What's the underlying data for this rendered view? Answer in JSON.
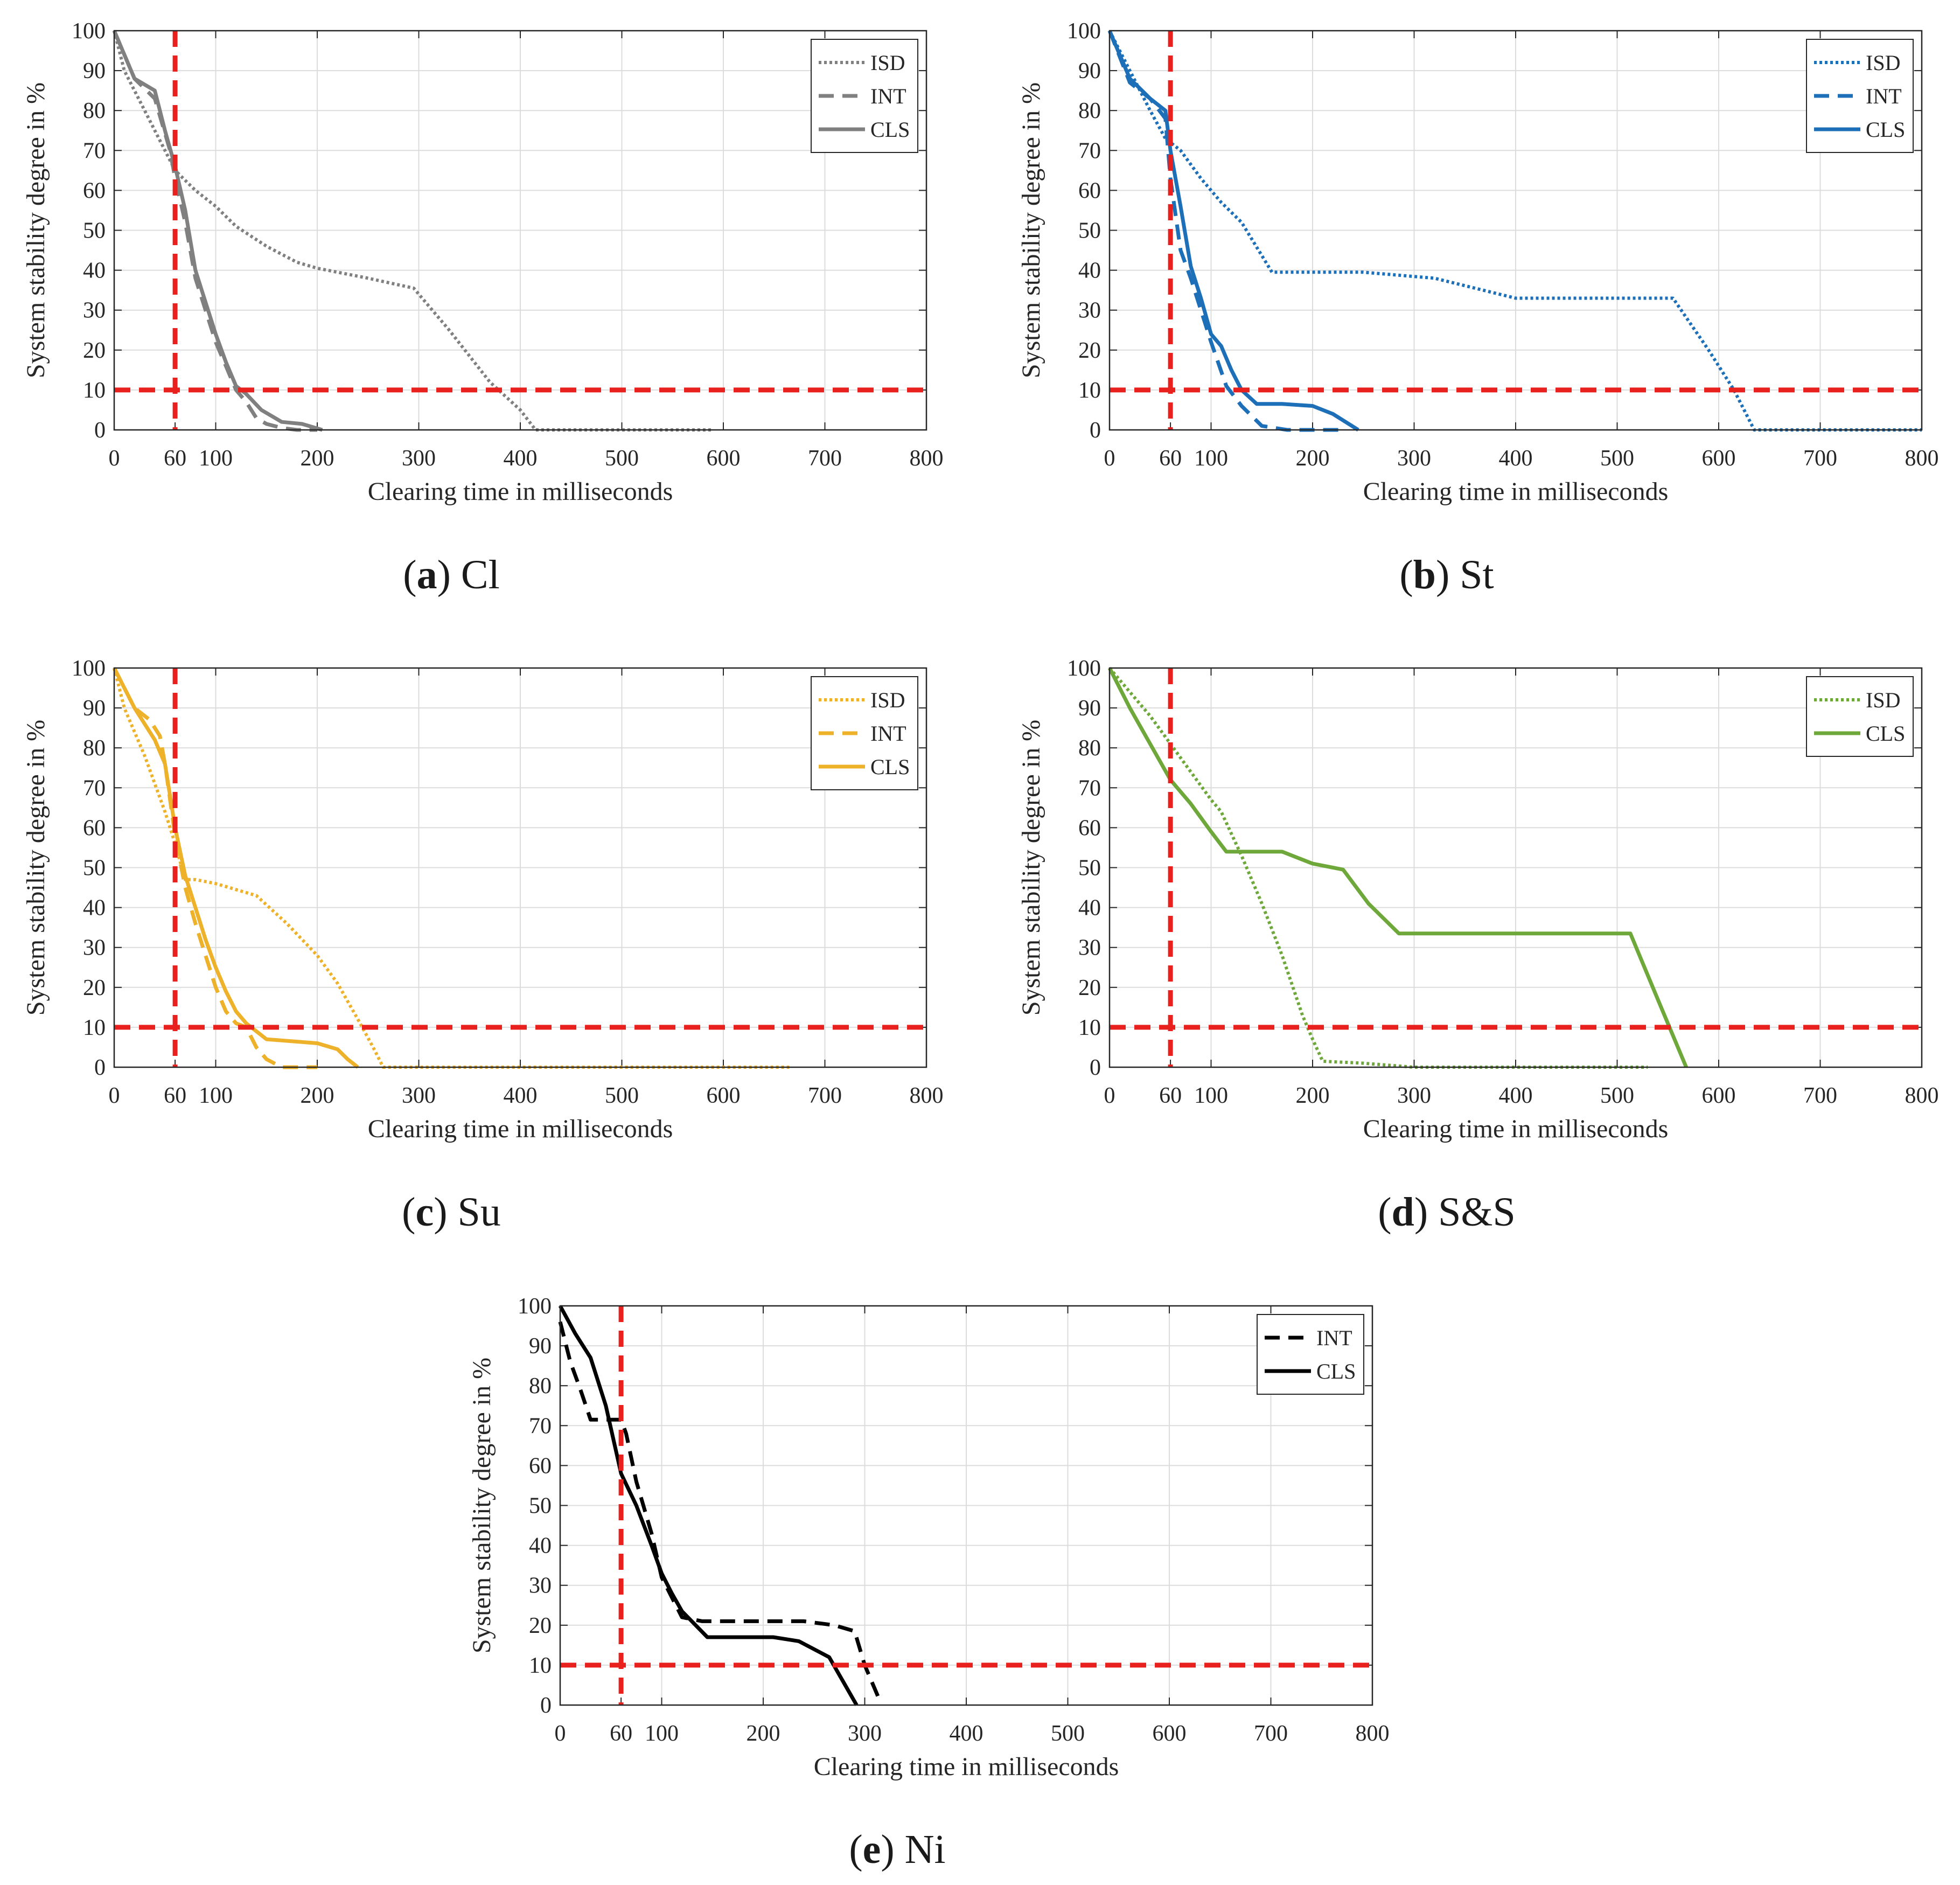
{
  "figure": {
    "panel_tags": [
      "a",
      "b",
      "c",
      "d",
      "e"
    ]
  },
  "styles": {
    "threshold_color": "#e8201e",
    "grid_color": "#dcdcdc"
  },
  "chart_data": [
    {
      "type": "line",
      "panel": "a",
      "caption_label": "(a)",
      "caption_title": "Cl",
      "color": "#808080",
      "xlabel": "Clearing time in milliseconds",
      "ylabel": "System stability degree in %",
      "xlim": [
        0,
        800
      ],
      "ylim": [
        0,
        100
      ],
      "xticks": [
        0,
        60,
        100,
        200,
        300,
        400,
        500,
        600,
        700,
        800
      ],
      "xgrid": [
        0,
        100,
        200,
        300,
        400,
        500,
        600,
        700,
        800
      ],
      "yticks": [
        0,
        10,
        20,
        30,
        40,
        50,
        60,
        70,
        80,
        90,
        100
      ],
      "thresholds": {
        "x": 60,
        "y": 10
      },
      "legend": "top-right",
      "series": [
        {
          "name": "ISD",
          "style": "dotted",
          "x": [
            0,
            10,
            30,
            50,
            60,
            80,
            100,
            120,
            150,
            180,
            200,
            250,
            295,
            330,
            370,
            400,
            415,
            590
          ],
          "y": [
            100,
            90,
            80,
            70,
            65,
            60,
            56,
            51,
            46,
            42,
            40.5,
            38,
            35.5,
            25,
            12,
            5,
            0,
            0
          ]
        },
        {
          "name": "INT",
          "style": "dashed",
          "x": [
            0,
            20,
            40,
            55,
            60,
            70,
            80,
            90,
            100,
            110,
            120,
            130,
            140,
            150,
            165,
            180,
            200
          ],
          "y": [
            100,
            88,
            83,
            70,
            63,
            52,
            38,
            30,
            22,
            16,
            10,
            7,
            3,
            1.5,
            0.5,
            0,
            0
          ]
        },
        {
          "name": "CLS",
          "style": "solid",
          "x": [
            0,
            20,
            40,
            50,
            60,
            70,
            80,
            90,
            100,
            110,
            120,
            130,
            145,
            165,
            185,
            205
          ],
          "y": [
            100,
            88,
            85,
            75,
            66,
            55,
            40,
            32,
            24,
            17,
            11,
            9,
            5,
            2,
            1.5,
            0
          ]
        }
      ]
    },
    {
      "type": "line",
      "panel": "b",
      "caption_label": "(b)",
      "caption_title": "St",
      "color": "#1d6fb8",
      "xlabel": "Clearing time in milliseconds",
      "ylabel": "System stability degree in %",
      "xlim": [
        0,
        800
      ],
      "ylim": [
        0,
        100
      ],
      "xticks": [
        0,
        60,
        100,
        200,
        300,
        400,
        500,
        600,
        700,
        800
      ],
      "xgrid": [
        0,
        100,
        200,
        300,
        400,
        500,
        600,
        700,
        800
      ],
      "yticks": [
        0,
        10,
        20,
        30,
        40,
        50,
        60,
        70,
        80,
        90,
        100
      ],
      "thresholds": {
        "x": 60,
        "y": 10
      },
      "legend": "top-right",
      "series": [
        {
          "name": "ISD",
          "style": "dotted",
          "x": [
            0,
            20,
            40,
            55,
            70,
            90,
            110,
            130,
            160,
            200,
            250,
            320,
            400,
            500,
            555,
            590,
            615,
            635,
            800
          ],
          "y": [
            100,
            90,
            80,
            73,
            70,
            63,
            57,
            52,
            39.5,
            39.5,
            39.5,
            38,
            33,
            33,
            33,
            20,
            10,
            0,
            0
          ]
        },
        {
          "name": "INT",
          "style": "dashed",
          "x": [
            0,
            20,
            40,
            55,
            60,
            70,
            80,
            90,
            100,
            115,
            130,
            150,
            175,
            200,
            230
          ],
          "y": [
            100,
            87,
            83,
            78,
            63,
            45,
            38,
            30,
            22,
            11,
            6,
            1,
            0,
            0,
            0
          ]
        },
        {
          "name": "CLS",
          "style": "solid",
          "x": [
            0,
            20,
            40,
            55,
            60,
            70,
            80,
            90,
            100,
            110,
            120,
            130,
            145,
            170,
            200,
            220,
            245
          ],
          "y": [
            100,
            88,
            83,
            80,
            70,
            56,
            41,
            33,
            24,
            21,
            15,
            10,
            6.5,
            6.5,
            6,
            4,
            0
          ]
        }
      ]
    },
    {
      "type": "line",
      "panel": "c",
      "caption_label": "(c)",
      "caption_title": "Su",
      "color": "#eeb12a",
      "xlabel": "Clearing time in milliseconds",
      "ylabel": "System stability degree in %",
      "xlim": [
        0,
        800
      ],
      "ylim": [
        0,
        100
      ],
      "xticks": [
        0,
        60,
        100,
        200,
        300,
        400,
        500,
        600,
        700,
        800
      ],
      "xgrid": [
        0,
        100,
        200,
        300,
        400,
        500,
        600,
        700,
        800
      ],
      "yticks": [
        0,
        10,
        20,
        30,
        40,
        50,
        60,
        70,
        80,
        90,
        100
      ],
      "thresholds": {
        "x": 60,
        "y": 10
      },
      "legend": "top-right",
      "series": [
        {
          "name": "ISD",
          "style": "dotted",
          "x": [
            0,
            10,
            30,
            50,
            60,
            70,
            80,
            100,
            140,
            170,
            200,
            220,
            240,
            255,
            265,
            300,
            400,
            500,
            600,
            665
          ],
          "y": [
            100,
            90,
            78,
            64,
            56,
            47,
            47,
            46,
            43,
            36,
            28,
            21,
            12,
            5,
            0,
            0,
            0,
            0,
            0,
            0
          ]
        },
        {
          "name": "INT",
          "style": "dashed",
          "x": [
            0,
            20,
            35,
            45,
            50,
            60,
            70,
            80,
            90,
            100,
            110,
            120,
            130,
            140,
            150,
            165,
            200
          ],
          "y": [
            100,
            90,
            87,
            83,
            76,
            58,
            45,
            36,
            28,
            20,
            14,
            11,
            10,
            5,
            2,
            0,
            0
          ]
        },
        {
          "name": "CLS",
          "style": "solid",
          "x": [
            0,
            20,
            40,
            50,
            55,
            60,
            70,
            80,
            90,
            100,
            110,
            120,
            130,
            140,
            150,
            200,
            220,
            230,
            240
          ],
          "y": [
            100,
            90,
            82,
            76,
            68,
            60,
            48,
            40,
            32,
            25,
            19,
            14,
            11,
            9,
            7,
            6,
            4.5,
            2,
            0
          ]
        }
      ]
    },
    {
      "type": "line",
      "panel": "d",
      "caption_label": "(d)",
      "caption_title": "S&S",
      "color": "#6fa83a",
      "xlabel": "Clearing time in milliseconds",
      "ylabel": "System stability degree in %",
      "xlim": [
        0,
        800
      ],
      "ylim": [
        0,
        100
      ],
      "xticks": [
        0,
        60,
        100,
        200,
        300,
        400,
        500,
        600,
        700,
        800
      ],
      "xgrid": [
        0,
        100,
        200,
        300,
        400,
        500,
        600,
        700,
        800
      ],
      "yticks": [
        0,
        10,
        20,
        30,
        40,
        50,
        60,
        70,
        80,
        90,
        100
      ],
      "thresholds": {
        "x": 60,
        "y": 10
      },
      "legend": "top-right",
      "series": [
        {
          "name": "ISD",
          "style": "dotted",
          "x": [
            0,
            20,
            40,
            60,
            80,
            100,
            110,
            130,
            150,
            170,
            190,
            200,
            210,
            250,
            300,
            400,
            500,
            530
          ],
          "y": [
            100,
            94,
            88,
            81,
            74,
            67,
            64,
            53,
            41,
            28,
            13,
            7,
            1.5,
            1,
            0,
            0,
            0,
            0
          ]
        },
        {
          "name": "CLS",
          "style": "solid",
          "x": [
            0,
            20,
            40,
            60,
            80,
            100,
            115,
            140,
            170,
            200,
            230,
            255,
            285,
            350,
            400,
            450,
            513,
            540,
            568
          ],
          "y": [
            100,
            90,
            81,
            72,
            66,
            59,
            54,
            54,
            54,
            51,
            49.5,
            41,
            33.5,
            33.5,
            33.5,
            33.5,
            33.5,
            17,
            0
          ]
        }
      ]
    },
    {
      "type": "line",
      "panel": "e",
      "caption_label": "(e)",
      "caption_title": "Ni",
      "color": "#000000",
      "xlabel": "Clearing time in milliseconds",
      "ylabel": "System stability degree in %",
      "xlim": [
        0,
        800
      ],
      "ylim": [
        0,
        100
      ],
      "xticks": [
        0,
        60,
        100,
        200,
        300,
        400,
        500,
        600,
        700,
        800
      ],
      "xgrid": [
        0,
        100,
        200,
        300,
        400,
        500,
        600,
        700,
        800
      ],
      "yticks": [
        0,
        10,
        20,
        30,
        40,
        50,
        60,
        70,
        80,
        90,
        100
      ],
      "thresholds": {
        "x": 60,
        "y": 10
      },
      "legend": "top-right",
      "series": [
        {
          "name": "INT",
          "style": "dashed",
          "x": [
            0,
            10,
            20,
            30,
            50,
            60,
            65,
            75,
            90,
            100,
            110,
            120,
            140,
            170,
            200,
            240,
            270,
            290,
            300,
            315
          ],
          "y": [
            96,
            86,
            79,
            71.5,
            71.5,
            71.5,
            68,
            56,
            43,
            32,
            27,
            22,
            21,
            21,
            21,
            21,
            20,
            18.5,
            10,
            1
          ]
        },
        {
          "name": "CLS",
          "style": "solid",
          "x": [
            0,
            15,
            30,
            45,
            60,
            75,
            90,
            100,
            110,
            120,
            145,
            180,
            210,
            235,
            265,
            292
          ],
          "y": [
            100,
            93,
            87,
            75,
            58,
            50,
            40,
            33,
            28,
            23.5,
            17,
            17,
            17,
            16,
            12,
            0
          ]
        }
      ]
    }
  ]
}
